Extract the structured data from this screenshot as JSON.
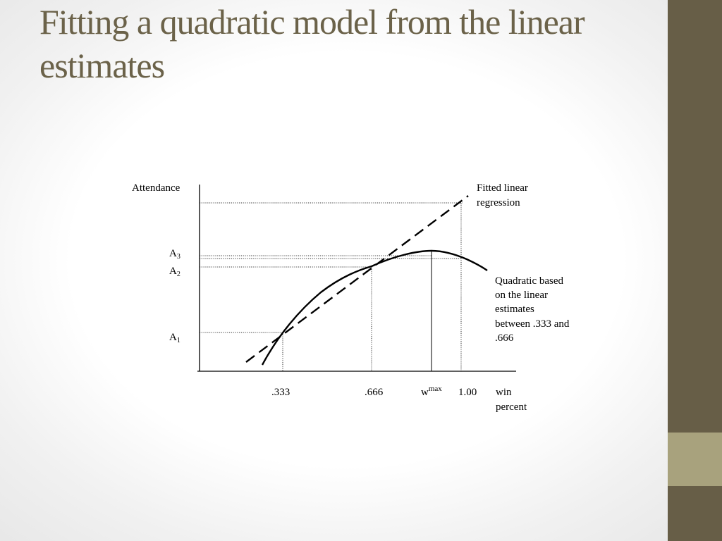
{
  "slide": {
    "title": "Fitting a quadratic model from the linear estimates"
  },
  "diagram": {
    "y_axis_label": "Attendance",
    "x_axis_label_line1": "win",
    "x_axis_label_line2": "percent",
    "y_marks": [
      {
        "letter": "A",
        "sub": "3"
      },
      {
        "letter": "A",
        "sub": "2"
      },
      {
        "letter": "A",
        "sub": "1"
      }
    ],
    "x_ticks": [
      {
        "text": ".333"
      },
      {
        "text": ".666"
      },
      {
        "text": "w",
        "sup": "max"
      },
      {
        "text": "1.00"
      }
    ],
    "linear_label": [
      "Fitted linear",
      "regression"
    ],
    "quadratic_label": [
      "Quadratic based",
      "on the linear",
      "estimates",
      "between .333 and",
      ".666"
    ]
  },
  "colors": {
    "title": "#6b6249",
    "sidebar": "#675e47",
    "sidebar_accent": "#a8a27d"
  }
}
